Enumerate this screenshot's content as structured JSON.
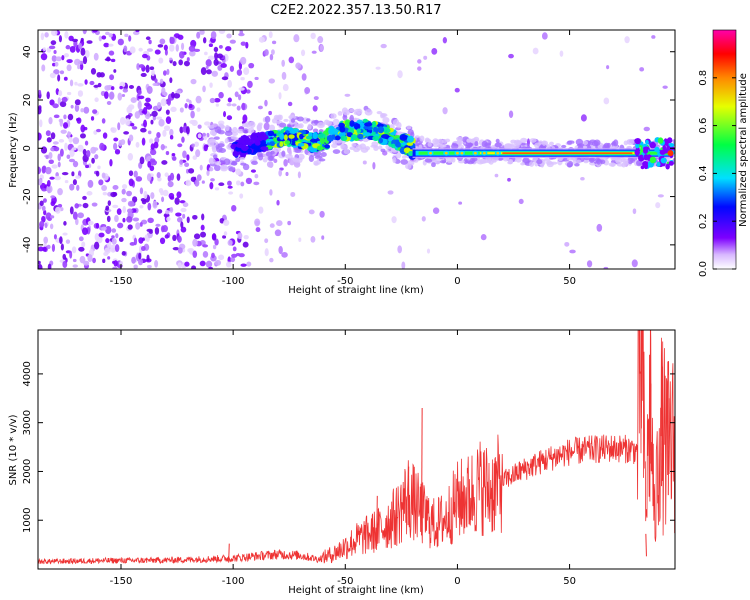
{
  "title": "C2E2.2022.357.13.50.R17",
  "chart_data": [
    {
      "type": "heatmap",
      "title": "",
      "xlabel": "Height of straight line (km)",
      "ylabel": "Frequency (Hz)",
      "xlim": [
        -187,
        97
      ],
      "ylim": [
        -50,
        49
      ],
      "x_ticks": [
        "-150",
        "-100",
        "-50",
        "0",
        "50"
      ],
      "x_tick_values": [
        -150,
        -100,
        -50,
        0,
        50
      ],
      "y_ticks": [
        "-40",
        "-20",
        "0",
        "20",
        "40"
      ],
      "y_tick_values": [
        -40,
        -20,
        0,
        20,
        40
      ],
      "colorbar": {
        "label": "Normalized spectral amplitude",
        "range": [
          0,
          1
        ],
        "ticks": [
          "0.0",
          "0.2",
          "0.4",
          "0.6",
          "0.8"
        ],
        "tick_values": [
          0.0,
          0.2,
          0.4,
          0.6,
          0.8
        ]
      },
      "ridge": [
        {
          "x": -100,
          "y": 0
        },
        {
          "x": -85,
          "y": 3
        },
        {
          "x": -75,
          "y": 5
        },
        {
          "x": -62,
          "y": 2
        },
        {
          "x": -52,
          "y": 7
        },
        {
          "x": -40,
          "y": 8
        },
        {
          "x": -30,
          "y": 5
        },
        {
          "x": -20,
          "y": 0
        },
        {
          "x": -10,
          "y": -2
        },
        {
          "x": 0,
          "y": -1
        },
        {
          "x": 50,
          "y": -2
        },
        {
          "x": 95,
          "y": -2
        }
      ],
      "grid": false
    },
    {
      "type": "line",
      "title": "",
      "xlabel": "Height of straight line (km)",
      "ylabel": "SNR (10 * v/v)",
      "xlim": [
        -187,
        97
      ],
      "ylim": [
        0,
        4900
      ],
      "x_ticks": [
        "-150",
        "-100",
        "-50",
        "0",
        "50"
      ],
      "x_tick_values": [
        -150,
        -100,
        -50,
        0,
        50
      ],
      "y_ticks": [
        "1000",
        "2000",
        "3000",
        "4000"
      ],
      "y_tick_values": [
        1000,
        2000,
        3000,
        4000
      ],
      "color": "#ee3333",
      "series": [
        {
          "x": [
            -187,
            -160,
            -130,
            -100,
            -80,
            -70,
            -62,
            -55,
            -45,
            -35,
            -27,
            -22,
            -16,
            -10,
            -5,
            0,
            5,
            10,
            15,
            20,
            30,
            40,
            50,
            60,
            70,
            78,
            80,
            82,
            84,
            86,
            88,
            90,
            93,
            97
          ],
          "values": [
            150,
            170,
            180,
            220,
            300,
            280,
            200,
            320,
            600,
            800,
            1100,
            1500,
            1150,
            900,
            1050,
            1400,
            1500,
            1700,
            1600,
            1800,
            2050,
            2250,
            2400,
            2450,
            2480,
            2450,
            2400,
            4800,
            1200,
            3600,
            800,
            3000,
            2500,
            2600
          ],
          "spikes": [
            {
              "x": -102,
              "y": 520
            },
            {
              "x": -36,
              "y": 1500
            },
            {
              "x": -22,
              "y": 2100
            },
            {
              "x": -16,
              "y": 3300
            },
            {
              "x": 82,
              "y": 4850
            },
            {
              "x": 84,
              "y": 260
            },
            {
              "x": 86,
              "y": 3800
            },
            {
              "x": 91,
              "y": 4150
            },
            {
              "x": 94,
              "y": 3500
            }
          ]
        }
      ],
      "grid": false
    }
  ]
}
